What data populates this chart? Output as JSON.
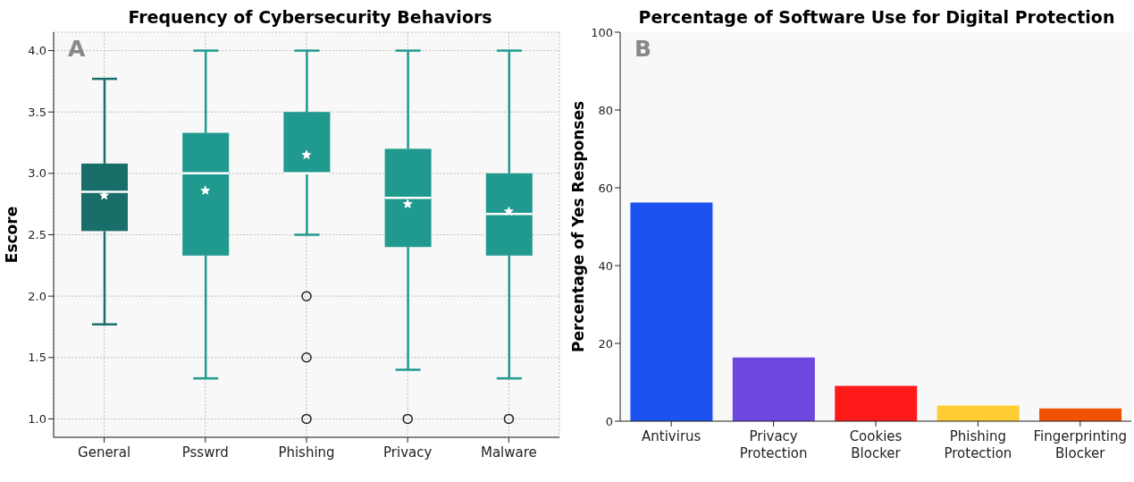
{
  "chart_data": [
    {
      "type": "box",
      "title": "Frequency of Cybersecurity Behaviors",
      "ylabel": "Escore",
      "categories": [
        "General",
        "Psswrd",
        "Phishing",
        "Privacy",
        "Malware"
      ],
      "boxes": [
        {
          "low": 1.77,
          "q1": 2.53,
          "median": 2.85,
          "q3": 3.08,
          "high": 3.77,
          "mean": 2.82
        },
        {
          "low": 1.33,
          "q1": 2.33,
          "median": 3.0,
          "q3": 3.33,
          "high": 4.0,
          "mean": 2.86
        },
        {
          "low": 2.5,
          "q1": 3.0,
          "median": 3.0,
          "q3": 3.5,
          "high": 4.0,
          "mean": 3.15,
          "outliers": [
            2.0,
            1.5,
            1.0
          ]
        },
        {
          "low": 1.4,
          "q1": 2.4,
          "median": 2.8,
          "q3": 3.2,
          "high": 4.0,
          "mean": 2.75,
          "outliers": [
            1.0
          ]
        },
        {
          "low": 1.33,
          "q1": 2.33,
          "median": 2.67,
          "q3": 3.0,
          "high": 4.0,
          "mean": 2.69,
          "outliers": [
            1.0
          ]
        }
      ],
      "colors": [
        "#1a6e6a",
        "#20998f",
        "#20998f",
        "#20998f",
        "#20998f"
      ],
      "ylim": [
        0.85,
        4.15
      ],
      "yticks": [
        {
          "value": 1,
          "label": "1.0"
        },
        {
          "value": 1.5,
          "label": "1.5"
        },
        {
          "value": 2,
          "label": "2.0"
        },
        {
          "value": 2.5,
          "label": "2.5"
        },
        {
          "value": 3,
          "label": "3.0"
        },
        {
          "value": 3.5,
          "label": "3.5"
        },
        {
          "value": 4,
          "label": "4.0"
        }
      ],
      "grid": true,
      "marker": "star",
      "annotations": [
        "A"
      ]
    },
    {
      "type": "bar",
      "title": "Percentage of Software Use for Digital Protection",
      "ylabel": "Percentage of Yes Responses",
      "categories": [
        "Antivirus",
        "Privacy Protection",
        "Cookies Blocker",
        "Phishing Protection",
        "Fingerprinting Blocker"
      ],
      "values": [
        56.2,
        16.4,
        9.1,
        4.0,
        3.3
      ],
      "colors": [
        "#1a53f0",
        "#6e46e0",
        "#ff1a1a",
        "#ffcc33",
        "#f05000"
      ],
      "ylim": [
        0,
        100
      ],
      "yticks": [
        0,
        20,
        40,
        60,
        80,
        100
      ],
      "grid": false,
      "annotations": [
        "B"
      ]
    }
  ]
}
